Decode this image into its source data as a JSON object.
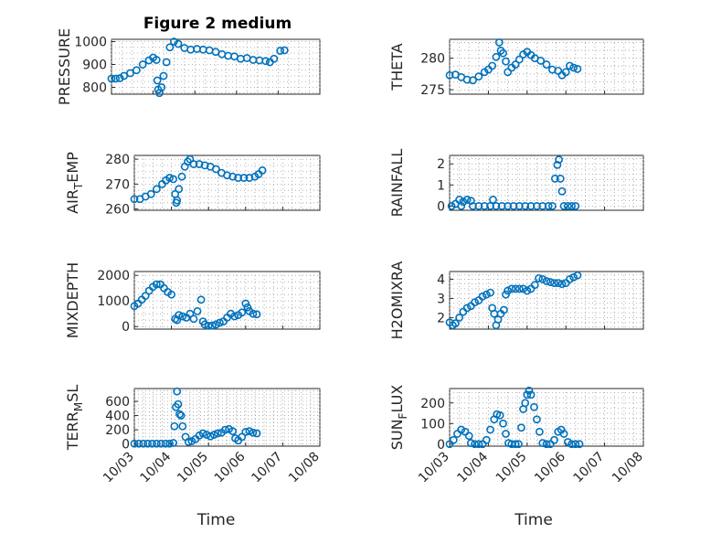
{
  "figure_title": "Figure 2 medium",
  "colors": {
    "marker": "#0072bd",
    "axes": "#262626",
    "grid": "#9e9e9e"
  },
  "chart_data": [
    {
      "type": "scatter",
      "title": "Figure 2 medium",
      "ylabel": "PRESSURE",
      "xlabel": "",
      "ylim": [
        770,
        1010
      ],
      "yticks": [
        800,
        900,
        1000
      ],
      "yticklabels": [
        "800",
        "900",
        "1000"
      ],
      "grid": true,
      "marker": "o",
      "xlim": [
        0,
        5
      ],
      "xticks": [
        0,
        1,
        2,
        3,
        4,
        5
      ],
      "xticklabels": [
        "10/03",
        "10/04",
        "10/05",
        "10/06",
        "10/07",
        "10/08"
      ],
      "points": [
        [
          0,
          838
        ],
        [
          0.1,
          838
        ],
        [
          0.2,
          840
        ],
        [
          0.3,
          850
        ],
        [
          0.45,
          862
        ],
        [
          0.6,
          875
        ],
        [
          0.75,
          900
        ],
        [
          0.9,
          918
        ],
        [
          1.0,
          930
        ],
        [
          1.08,
          920
        ],
        [
          1.1,
          830
        ],
        [
          1.12,
          790
        ],
        [
          1.15,
          775
        ],
        [
          1.2,
          800
        ],
        [
          1.25,
          850
        ],
        [
          1.32,
          910
        ],
        [
          1.4,
          975
        ],
        [
          1.5,
          1000
        ],
        [
          1.6,
          990
        ],
        [
          1.75,
          972
        ],
        [
          1.9,
          965
        ],
        [
          2.05,
          968
        ],
        [
          2.2,
          965
        ],
        [
          2.35,
          962
        ],
        [
          2.5,
          955
        ],
        [
          2.65,
          945
        ],
        [
          2.8,
          938
        ],
        [
          2.95,
          935
        ],
        [
          3.1,
          925
        ],
        [
          3.25,
          928
        ],
        [
          3.4,
          920
        ],
        [
          3.55,
          918
        ],
        [
          3.7,
          915
        ],
        [
          3.8,
          910
        ],
        [
          3.9,
          925
        ],
        [
          4.05,
          960
        ],
        [
          4.15,
          962
        ]
      ]
    },
    {
      "type": "scatter",
      "title": "",
      "ylabel": "THETA",
      "xlabel": "",
      "ylim": [
        274.3,
        283
      ],
      "yticks": [
        275,
        280
      ],
      "yticklabels": [
        "275",
        "280"
      ],
      "grid": true,
      "marker": "o",
      "xlim": [
        0,
        5
      ],
      "xticks": [
        0,
        1,
        2,
        3,
        4,
        5
      ],
      "xticklabels": [
        "10/03",
        "10/04",
        "10/05",
        "10/06",
        "10/07",
        "10/08"
      ],
      "points": [
        [
          0,
          277.3
        ],
        [
          0.15,
          277.4
        ],
        [
          0.3,
          277.0
        ],
        [
          0.45,
          276.6
        ],
        [
          0.6,
          276.5
        ],
        [
          0.75,
          277.1
        ],
        [
          0.9,
          277.8
        ],
        [
          1.0,
          278.2
        ],
        [
          1.1,
          278.8
        ],
        [
          1.2,
          280.2
        ],
        [
          1.28,
          282.5
        ],
        [
          1.32,
          281.2
        ],
        [
          1.38,
          280.8
        ],
        [
          1.45,
          279.5
        ],
        [
          1.5,
          277.8
        ],
        [
          1.6,
          278.5
        ],
        [
          1.7,
          279.0
        ],
        [
          1.8,
          279.8
        ],
        [
          1.9,
          280.6
        ],
        [
          2.0,
          281.0
        ],
        [
          2.1,
          280.5
        ],
        [
          2.2,
          280.0
        ],
        [
          2.35,
          279.6
        ],
        [
          2.5,
          279.0
        ],
        [
          2.65,
          278.2
        ],
        [
          2.8,
          278.0
        ],
        [
          2.9,
          277.3
        ],
        [
          3.0,
          277.8
        ],
        [
          3.1,
          278.8
        ],
        [
          3.2,
          278.5
        ],
        [
          3.3,
          278.3
        ]
      ]
    },
    {
      "type": "scatter",
      "title": "",
      "ylabel": "AIR_TEMP",
      "xlabel": "",
      "ylim": [
        259.5,
        281.5
      ],
      "yticks": [
        260,
        270,
        280
      ],
      "yticklabels": [
        "260",
        "270",
        "280"
      ],
      "grid": true,
      "marker": "o",
      "xlim": [
        0,
        5
      ],
      "xticks": [
        0,
        1,
        2,
        3,
        4,
        5
      ],
      "xticklabels": [
        "10/03",
        "10/04",
        "10/05",
        "10/06",
        "10/07",
        "10/08"
      ],
      "points": [
        [
          0,
          264
        ],
        [
          0.15,
          264
        ],
        [
          0.3,
          265
        ],
        [
          0.45,
          266
        ],
        [
          0.6,
          268
        ],
        [
          0.75,
          270
        ],
        [
          0.85,
          271.5
        ],
        [
          0.95,
          272.5
        ],
        [
          1.05,
          272
        ],
        [
          1.1,
          266
        ],
        [
          1.13,
          262.5
        ],
        [
          1.15,
          263.5
        ],
        [
          1.2,
          268
        ],
        [
          1.28,
          273
        ],
        [
          1.36,
          277
        ],
        [
          1.44,
          279
        ],
        [
          1.5,
          280
        ],
        [
          1.6,
          278
        ],
        [
          1.75,
          278
        ],
        [
          1.9,
          277.5
        ],
        [
          2.05,
          277
        ],
        [
          2.2,
          276
        ],
        [
          2.35,
          274.5
        ],
        [
          2.5,
          273.5
        ],
        [
          2.65,
          273
        ],
        [
          2.8,
          272.5
        ],
        [
          2.95,
          272.5
        ],
        [
          3.1,
          272.5
        ],
        [
          3.25,
          273
        ],
        [
          3.35,
          274
        ],
        [
          3.45,
          275.5
        ]
      ]
    },
    {
      "type": "scatter",
      "title": "",
      "ylabel": "RAINFALL",
      "xlabel": "",
      "ylim": [
        -0.2,
        2.4
      ],
      "yticks": [
        0,
        1,
        2
      ],
      "yticklabels": [
        "0",
        "1",
        "2"
      ],
      "grid": true,
      "marker": "o",
      "xlim": [
        0,
        5
      ],
      "xticks": [
        0,
        1,
        2,
        3,
        4,
        5
      ],
      "xticklabels": [
        "10/03",
        "10/04",
        "10/05",
        "10/06",
        "10/07",
        "10/08"
      ],
      "points": [
        [
          0.05,
          0
        ],
        [
          0.15,
          0.1
        ],
        [
          0.25,
          0.3
        ],
        [
          0.3,
          0
        ],
        [
          0.35,
          0.2
        ],
        [
          0.45,
          0.3
        ],
        [
          0.55,
          0.25
        ],
        [
          0.6,
          0
        ],
        [
          0.75,
          0
        ],
        [
          0.9,
          0
        ],
        [
          1.05,
          0
        ],
        [
          1.12,
          0.3
        ],
        [
          1.2,
          0
        ],
        [
          1.35,
          0
        ],
        [
          1.5,
          0
        ],
        [
          1.65,
          0
        ],
        [
          1.8,
          0
        ],
        [
          1.95,
          0
        ],
        [
          2.1,
          0
        ],
        [
          2.25,
          0
        ],
        [
          2.4,
          0
        ],
        [
          2.55,
          0
        ],
        [
          2.65,
          0
        ],
        [
          2.72,
          1.3
        ],
        [
          2.78,
          1.95
        ],
        [
          2.82,
          2.2
        ],
        [
          2.86,
          1.3
        ],
        [
          2.9,
          0.7
        ],
        [
          2.95,
          0.0
        ],
        [
          3.05,
          0
        ],
        [
          3.15,
          0
        ],
        [
          3.25,
          0
        ]
      ]
    },
    {
      "type": "scatter",
      "title": "",
      "ylabel": "MIXDEPTH",
      "xlabel": "",
      "ylim": [
        -100,
        2150
      ],
      "yticks": [
        0,
        1000,
        2000
      ],
      "yticklabels": [
        "0",
        "1000",
        "2000"
      ],
      "grid": true,
      "marker": "o",
      "xlim": [
        0,
        5
      ],
      "xticks": [
        0,
        1,
        2,
        3,
        4,
        5
      ],
      "xticklabels": [
        "10/03",
        "10/04",
        "10/05",
        "10/06",
        "10/07",
        "10/08"
      ],
      "points": [
        [
          0,
          800
        ],
        [
          0.1,
          900
        ],
        [
          0.2,
          1050
        ],
        [
          0.3,
          1200
        ],
        [
          0.4,
          1400
        ],
        [
          0.5,
          1550
        ],
        [
          0.6,
          1650
        ],
        [
          0.7,
          1650
        ],
        [
          0.8,
          1500
        ],
        [
          0.9,
          1350
        ],
        [
          1.0,
          1250
        ],
        [
          1.1,
          300
        ],
        [
          1.15,
          250
        ],
        [
          1.2,
          450
        ],
        [
          1.3,
          400
        ],
        [
          1.4,
          350
        ],
        [
          1.5,
          500
        ],
        [
          1.6,
          300
        ],
        [
          1.7,
          600
        ],
        [
          1.8,
          1050
        ],
        [
          1.85,
          200
        ],
        [
          1.9,
          80
        ],
        [
          2.0,
          30
        ],
        [
          2.1,
          40
        ],
        [
          2.2,
          80
        ],
        [
          2.3,
          150
        ],
        [
          2.4,
          200
        ],
        [
          2.5,
          350
        ],
        [
          2.6,
          500
        ],
        [
          2.7,
          400
        ],
        [
          2.8,
          450
        ],
        [
          2.9,
          550
        ],
        [
          3.0,
          900
        ],
        [
          3.05,
          750
        ],
        [
          3.1,
          600
        ],
        [
          3.2,
          500
        ],
        [
          3.3,
          480
        ]
      ]
    },
    {
      "type": "scatter",
      "title": "",
      "ylabel": "H2OMIXRA",
      "xlabel": "",
      "ylim": [
        1.4,
        4.4
      ],
      "yticks": [
        2,
        3,
        4
      ],
      "yticklabels": [
        "2",
        "3",
        "4"
      ],
      "grid": true,
      "marker": "o",
      "xlim": [
        0,
        5
      ],
      "xticks": [
        0,
        1,
        2,
        3,
        4,
        5
      ],
      "xticklabels": [
        "10/03",
        "10/04",
        "10/05",
        "10/06",
        "10/07",
        "10/08"
      ],
      "points": [
        [
          0,
          1.75
        ],
        [
          0.08,
          1.6
        ],
        [
          0.15,
          1.7
        ],
        [
          0.25,
          2.0
        ],
        [
          0.35,
          2.3
        ],
        [
          0.45,
          2.5
        ],
        [
          0.55,
          2.6
        ],
        [
          0.65,
          2.8
        ],
        [
          0.75,
          2.9
        ],
        [
          0.85,
          3.1
        ],
        [
          0.95,
          3.2
        ],
        [
          1.05,
          3.3
        ],
        [
          1.1,
          2.5
        ],
        [
          1.15,
          2.2
        ],
        [
          1.2,
          1.6
        ],
        [
          1.25,
          1.9
        ],
        [
          1.32,
          2.2
        ],
        [
          1.4,
          2.4
        ],
        [
          1.45,
          3.2
        ],
        [
          1.5,
          3.4
        ],
        [
          1.6,
          3.5
        ],
        [
          1.7,
          3.5
        ],
        [
          1.8,
          3.5
        ],
        [
          1.9,
          3.5
        ],
        [
          2.0,
          3.4
        ],
        [
          2.1,
          3.5
        ],
        [
          2.2,
          3.7
        ],
        [
          2.3,
          4.05
        ],
        [
          2.4,
          4.0
        ],
        [
          2.5,
          3.9
        ],
        [
          2.6,
          3.85
        ],
        [
          2.7,
          3.8
        ],
        [
          2.8,
          3.8
        ],
        [
          2.9,
          3.75
        ],
        [
          3.0,
          3.8
        ],
        [
          3.1,
          4.0
        ],
        [
          3.2,
          4.1
        ],
        [
          3.3,
          4.2
        ]
      ]
    },
    {
      "type": "scatter",
      "title": "",
      "ylabel": "TERR_MSL",
      "xlabel": "Time",
      "ylim": [
        -30,
        780
      ],
      "yticks": [
        0,
        200,
        400,
        600
      ],
      "yticklabels": [
        "0",
        "200",
        "400",
        "600"
      ],
      "grid": true,
      "marker": "o",
      "xlim": [
        0,
        5
      ],
      "xticks": [
        0,
        1,
        2,
        3,
        4,
        5
      ],
      "xticklabels": [
        "10/03",
        "10/04",
        "10/05",
        "10/06",
        "10/07",
        "10/08"
      ],
      "points": [
        [
          0,
          5
        ],
        [
          0.12,
          5
        ],
        [
          0.24,
          5
        ],
        [
          0.36,
          5
        ],
        [
          0.48,
          5
        ],
        [
          0.6,
          5
        ],
        [
          0.72,
          5
        ],
        [
          0.84,
          5
        ],
        [
          0.95,
          5
        ],
        [
          1.05,
          15
        ],
        [
          1.08,
          250
        ],
        [
          1.12,
          520
        ],
        [
          1.15,
          740
        ],
        [
          1.18,
          560
        ],
        [
          1.22,
          420
        ],
        [
          1.26,
          400
        ],
        [
          1.3,
          250
        ],
        [
          1.38,
          100
        ],
        [
          1.46,
          30
        ],
        [
          1.55,
          40
        ],
        [
          1.65,
          70
        ],
        [
          1.75,
          120
        ],
        [
          1.85,
          150
        ],
        [
          1.95,
          130
        ],
        [
          2.05,
          110
        ],
        [
          2.15,
          130
        ],
        [
          2.25,
          150
        ],
        [
          2.35,
          160
        ],
        [
          2.45,
          200
        ],
        [
          2.55,
          210
        ],
        [
          2.65,
          180
        ],
        [
          2.72,
          80
        ],
        [
          2.8,
          50
        ],
        [
          2.9,
          100
        ],
        [
          3.0,
          170
        ],
        [
          3.1,
          180
        ],
        [
          3.2,
          160
        ],
        [
          3.3,
          150
        ]
      ]
    },
    {
      "type": "scatter",
      "title": "",
      "ylabel": "SUN_FLUX",
      "xlabel": "Time",
      "ylim": [
        -10,
        270
      ],
      "yticks": [
        0,
        100,
        200
      ],
      "yticklabels": [
        "0",
        "100",
        "200"
      ],
      "grid": true,
      "marker": "o",
      "xlim": [
        0,
        5
      ],
      "xticks": [
        0,
        1,
        2,
        3,
        4,
        5
      ],
      "xticklabels": [
        "10/03",
        "10/04",
        "10/05",
        "10/06",
        "10/07",
        "10/08"
      ],
      "points": [
        [
          0,
          0
        ],
        [
          0.1,
          20
        ],
        [
          0.2,
          50
        ],
        [
          0.3,
          70
        ],
        [
          0.4,
          60
        ],
        [
          0.5,
          40
        ],
        [
          0.55,
          5
        ],
        [
          0.65,
          0
        ],
        [
          0.75,
          0
        ],
        [
          0.85,
          0
        ],
        [
          0.95,
          20
        ],
        [
          1.05,
          70
        ],
        [
          1.15,
          120
        ],
        [
          1.22,
          145
        ],
        [
          1.3,
          140
        ],
        [
          1.38,
          100
        ],
        [
          1.45,
          50
        ],
        [
          1.52,
          5
        ],
        [
          1.6,
          0
        ],
        [
          1.7,
          0
        ],
        [
          1.78,
          0
        ],
        [
          1.85,
          80
        ],
        [
          1.9,
          170
        ],
        [
          1.95,
          200
        ],
        [
          2.0,
          240
        ],
        [
          2.05,
          260
        ],
        [
          2.1,
          240
        ],
        [
          2.18,
          180
        ],
        [
          2.25,
          120
        ],
        [
          2.32,
          60
        ],
        [
          2.4,
          5
        ],
        [
          2.5,
          0
        ],
        [
          2.6,
          0
        ],
        [
          2.7,
          20
        ],
        [
          2.8,
          60
        ],
        [
          2.88,
          70
        ],
        [
          2.95,
          50
        ],
        [
          3.05,
          10
        ],
        [
          3.15,
          0
        ],
        [
          3.25,
          0
        ],
        [
          3.35,
          0
        ]
      ]
    }
  ]
}
